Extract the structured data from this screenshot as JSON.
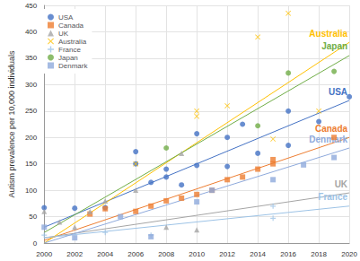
{
  "chart_data": {
    "type": "scatter",
    "y_label": "Autism prevalence per 10,000 individuals",
    "xlim": [
      2000,
      2020
    ],
    "xticks": [
      2000,
      2002,
      2004,
      2006,
      2008,
      2010,
      2012,
      2014,
      2016,
      2018,
      2020
    ],
    "ylim": [
      0,
      450
    ],
    "yticks": [
      0,
      50,
      100,
      150,
      200,
      250,
      300,
      350,
      400,
      450
    ],
    "grid": true,
    "legend": "top-left",
    "series": [
      {
        "name": "USA",
        "color": "#4472c4",
        "marker": "circle",
        "x": [
          2000,
          2002,
          2004,
          2006,
          2006,
          2007,
          2008,
          2008,
          2009,
          2010,
          2010,
          2012,
          2012,
          2013,
          2014,
          2016,
          2016,
          2018,
          2020
        ],
        "values": [
          67,
          66,
          67,
          150,
          173,
          115,
          125,
          140,
          110,
          147,
          207,
          200,
          145,
          225,
          170,
          185,
          250,
          230,
          277
        ],
        "trend": {
          "x": [
            2000,
            2020
          ],
          "values": [
            30,
            270
          ]
        }
      },
      {
        "name": "Canada",
        "color": "#ed7d31",
        "marker": "square",
        "x": [
          2003,
          2004,
          2006,
          2007,
          2008,
          2009,
          2010,
          2011,
          2012,
          2013,
          2014,
          2015,
          2015,
          2019
        ],
        "values": [
          55,
          65,
          60,
          70,
          80,
          85,
          92,
          100,
          120,
          125,
          140,
          150,
          158,
          200
        ],
        "trend": {
          "x": [
            2000,
            2020
          ],
          "values": [
            5,
            200
          ]
        }
      },
      {
        "name": "UK",
        "color": "#a5a5a5",
        "marker": "triangle",
        "x": [
          2000,
          2001,
          2002,
          2003,
          2004,
          2006,
          2008,
          2009,
          2010
        ],
        "values": [
          60,
          40,
          30,
          60,
          80,
          100,
          30,
          170,
          25
        ],
        "trend": {
          "x": [
            2000,
            2020
          ],
          "values": [
            10,
            95
          ]
        }
      },
      {
        "name": "Australia",
        "color": "#ffc000",
        "marker": "x",
        "x": [
          2006,
          2010,
          2010,
          2012,
          2014,
          2015,
          2016,
          2018
        ],
        "values": [
          150,
          240,
          250,
          260,
          390,
          197,
          435,
          250
        ],
        "trend": {
          "x": [
            2000,
            2020
          ],
          "values": [
            0,
            380
          ]
        }
      },
      {
        "name": "France",
        "color": "#9dc3e6",
        "marker": "cross",
        "x": [
          2000,
          2004,
          2007,
          2015,
          2015
        ],
        "values": [
          15,
          20,
          15,
          70,
          47
        ],
        "trend": {
          "x": [
            2000,
            2020
          ],
          "values": [
            10,
            70
          ]
        }
      },
      {
        "name": "Japan",
        "color": "#70ad47",
        "marker": "circle",
        "x": [
          2008,
          2014,
          2016,
          2019
        ],
        "values": [
          180,
          222,
          322,
          325
        ],
        "trend": {
          "x": [
            2000,
            2020
          ],
          "values": [
            20,
            355
          ]
        }
      },
      {
        "name": "Denmark",
        "color": "#8faadc",
        "marker": "square",
        "x": [
          2000,
          2002,
          2005,
          2007,
          2010,
          2011,
          2015,
          2017,
          2019
        ],
        "values": [
          30,
          10,
          50,
          12,
          78,
          100,
          120,
          148,
          162
        ],
        "trend": {
          "x": [
            2000,
            2020
          ],
          "values": [
            0,
            180
          ]
        }
      }
    ]
  }
}
